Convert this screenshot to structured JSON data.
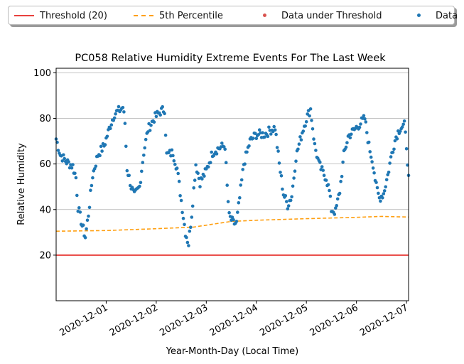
{
  "colors": {
    "threshold": "#e8413d",
    "percentile": "#ff9f10",
    "under": "#d9534f",
    "data": "#1f77b4",
    "grid": "#b0b0b0"
  },
  "legend": [
    {
      "label": "Threshold (20)",
      "kind": "line",
      "color": "#e8413d",
      "dash": false
    },
    {
      "label": "5th Percentile",
      "kind": "line",
      "color": "#ff9f10",
      "dash": true
    },
    {
      "label": "Data under Threshold",
      "kind": "dot",
      "color": "#d9534f"
    },
    {
      "label": "Data",
      "kind": "dot",
      "color": "#1f77b4"
    }
  ],
  "chart_data": {
    "type": "scatter",
    "title": "PC058 Relative Humidity Extreme Events For The Last Week",
    "xlabel": "Year-Month-Day (Local Time)",
    "ylabel": "Relative Humidity",
    "xlim": [
      "2020-11-30T00:00",
      "2020-12-07T01:00"
    ],
    "ylim": [
      0,
      102
    ],
    "yticks": [
      20,
      40,
      60,
      80,
      100
    ],
    "xticks": [
      "2020-12-01",
      "2020-12-02",
      "2020-12-03",
      "2020-12-04",
      "2020-12-05",
      "2020-12-06",
      "2020-12-07"
    ],
    "grid": "horizontal",
    "legend_position": "top",
    "threshold": {
      "name": "Threshold (20)",
      "value": 20
    },
    "percentile": {
      "name": "5th Percentile",
      "points": [
        [
          "2020-11-30T00:00",
          30.5
        ],
        [
          "2020-12-01T00:00",
          30.8
        ],
        [
          "2020-12-02T00:00",
          31.6
        ],
        [
          "2020-12-02T18:00",
          32.3
        ],
        [
          "2020-12-03T12:00",
          34.8
        ],
        [
          "2020-12-04T00:00",
          35.3
        ],
        [
          "2020-12-05T00:00",
          36.0
        ],
        [
          "2020-12-06T00:00",
          36.6
        ],
        [
          "2020-12-06T12:00",
          37.0
        ],
        [
          "2020-12-07T01:00",
          36.7
        ]
      ]
    },
    "series": [
      {
        "name": "Data under Threshold",
        "points": []
      },
      {
        "name": "Data",
        "keypoints": [
          [
            "2020-11-30T00:00",
            71
          ],
          [
            "2020-11-30T02:00",
            64
          ],
          [
            "2020-11-30T05:00",
            61
          ],
          [
            "2020-11-30T08:00",
            59
          ],
          [
            "2020-11-30T09:30",
            54
          ],
          [
            "2020-11-30T10:30",
            41
          ],
          [
            "2020-11-30T12:30",
            33
          ],
          [
            "2020-11-30T14:00",
            28
          ],
          [
            "2020-11-30T15:30",
            38
          ],
          [
            "2020-11-30T17:30",
            55
          ],
          [
            "2020-11-30T20:00",
            64
          ],
          [
            "2020-11-30T23:00",
            68
          ],
          [
            "2020-12-01T02:00",
            77
          ],
          [
            "2020-12-01T04:00",
            82
          ],
          [
            "2020-12-01T07:00",
            84
          ],
          [
            "2020-12-01T08:00",
            85
          ],
          [
            "2020-12-01T09:00",
            78
          ],
          [
            "2020-12-01T10:00",
            58
          ],
          [
            "2020-12-01T12:00",
            50
          ],
          [
            "2020-12-01T13:30",
            46
          ],
          [
            "2020-12-01T16:00",
            50
          ],
          [
            "2020-12-01T18:00",
            65
          ],
          [
            "2020-12-01T20:00",
            75
          ],
          [
            "2020-12-01T23:00",
            80
          ],
          [
            "2020-12-02T02:00",
            83
          ],
          [
            "2020-12-02T04:00",
            84
          ],
          [
            "2020-12-02T05:00",
            64
          ],
          [
            "2020-12-02T08:00",
            65
          ],
          [
            "2020-12-02T10:00",
            58
          ],
          [
            "2020-12-02T12:00",
            44
          ],
          [
            "2020-12-02T14:00",
            30
          ],
          [
            "2020-12-02T15:30",
            25
          ],
          [
            "2020-12-02T17:00",
            38
          ],
          [
            "2020-12-02T19:00",
            60
          ],
          [
            "2020-12-02T21:00",
            52
          ],
          [
            "2020-12-03T00:00",
            57
          ],
          [
            "2020-12-03T03:00",
            65
          ],
          [
            "2020-12-03T06:00",
            67
          ],
          [
            "2020-12-03T09:00",
            68
          ],
          [
            "2020-12-03T10:00",
            50
          ],
          [
            "2020-12-03T11:00",
            37
          ],
          [
            "2020-12-03T13:00",
            34
          ],
          [
            "2020-12-03T14:30",
            34
          ],
          [
            "2020-12-03T16:00",
            45
          ],
          [
            "2020-12-03T18:00",
            60
          ],
          [
            "2020-12-03T21:00",
            70
          ],
          [
            "2020-12-04T00:00",
            73
          ],
          [
            "2020-12-04T04:00",
            73
          ],
          [
            "2020-12-04T07:00",
            75
          ],
          [
            "2020-12-04T09:00",
            76
          ],
          [
            "2020-12-04T11:00",
            60
          ],
          [
            "2020-12-04T13:00",
            47
          ],
          [
            "2020-12-04T15:00",
            42
          ],
          [
            "2020-12-04T17:00",
            46
          ],
          [
            "2020-12-04T19:00",
            63
          ],
          [
            "2020-12-04T22:00",
            74
          ],
          [
            "2020-12-05T00:00",
            80
          ],
          [
            "2020-12-05T02:00",
            84
          ],
          [
            "2020-12-05T04:00",
            68
          ],
          [
            "2020-12-05T06:00",
            60
          ],
          [
            "2020-12-05T08:00",
            56
          ],
          [
            "2020-12-05T09:30",
            54
          ],
          [
            "2020-12-05T11:00",
            48
          ],
          [
            "2020-12-05T12:00",
            40
          ],
          [
            "2020-12-05T14:00",
            39
          ],
          [
            "2020-12-05T16:00",
            48
          ],
          [
            "2020-12-05T18:00",
            64
          ],
          [
            "2020-12-05T20:00",
            72
          ],
          [
            "2020-12-05T23:00",
            75
          ],
          [
            "2020-12-06T02:00",
            78
          ],
          [
            "2020-12-06T04:00",
            80
          ],
          [
            "2020-12-06T06:00",
            68
          ],
          [
            "2020-12-06T08:00",
            60
          ],
          [
            "2020-12-06T09:30",
            50
          ],
          [
            "2020-12-06T11:00",
            45
          ],
          [
            "2020-12-06T13:00",
            47
          ],
          [
            "2020-12-06T15:00",
            55
          ],
          [
            "2020-12-06T17:00",
            65
          ],
          [
            "2020-12-06T19:00",
            72
          ],
          [
            "2020-12-06T21:00",
            76
          ],
          [
            "2020-12-06T23:00",
            77
          ],
          [
            "2020-12-07T00:00",
            68
          ],
          [
            "2020-12-07T01:00",
            55
          ]
        ]
      }
    ]
  }
}
